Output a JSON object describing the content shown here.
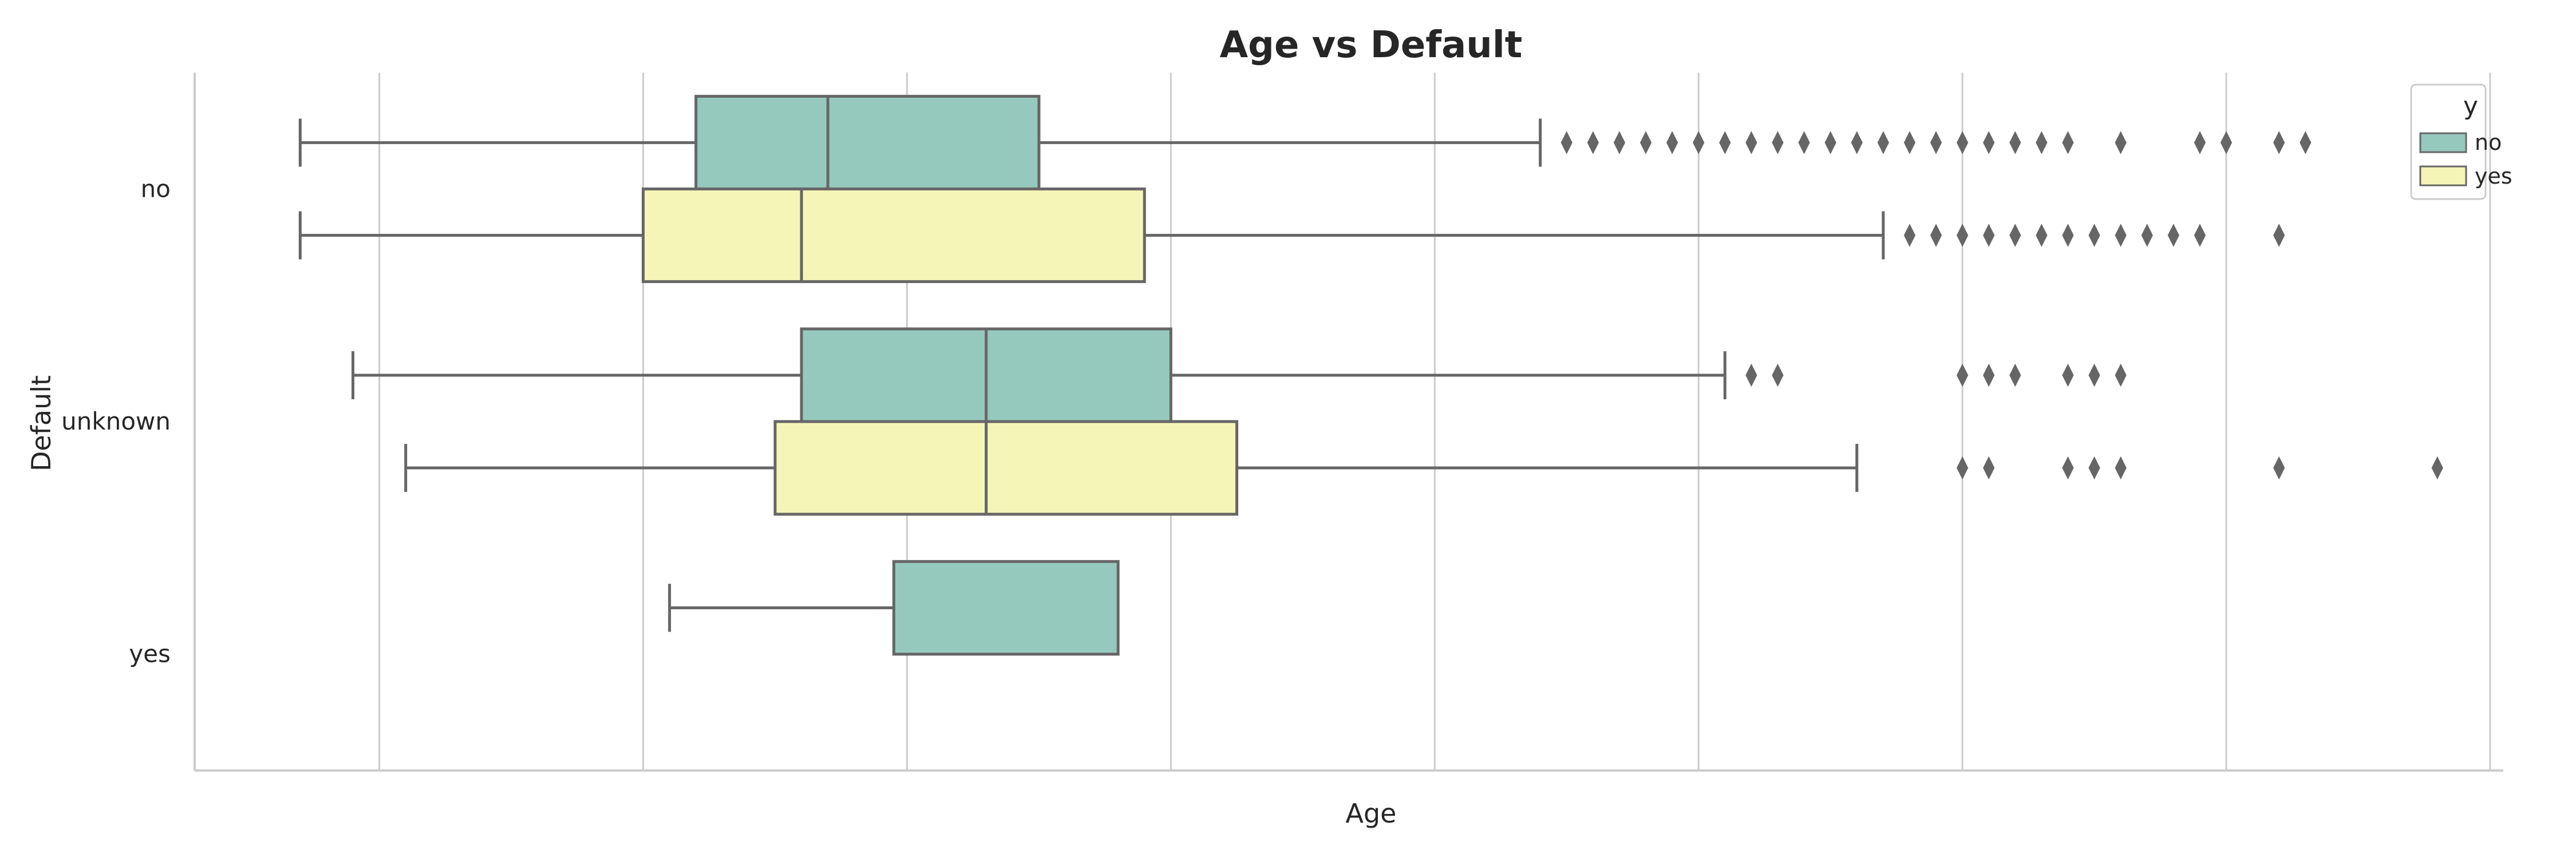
{
  "chart_data": {
    "type": "boxplot",
    "title": "Age vs Default",
    "xlabel": "Age",
    "ylabel": "Default",
    "categories": [
      "no",
      "unknown",
      "yes"
    ],
    "orientation": "horizontal",
    "xlim": [
      13,
      100.5
    ],
    "grid": true,
    "legend": {
      "title": "y",
      "position": "top-right",
      "entries": [
        "no",
        "yes"
      ]
    },
    "colors": {
      "no": "#96c9be",
      "yes": "#f5f5b8",
      "edge": "#666666",
      "grid": "#cccccc"
    },
    "series": [
      {
        "name": "no",
        "boxes": [
          {
            "category": "no",
            "whisker_low": 17,
            "q1": 32,
            "median": 37,
            "q3": 45,
            "whisker_high": 64,
            "outliers": [
              65,
              66,
              67,
              68,
              69,
              70,
              71,
              72,
              73,
              74,
              75,
              76,
              77,
              78,
              79,
              80,
              81,
              82,
              83,
              84,
              86,
              89,
              90,
              92,
              93
            ]
          },
          {
            "category": "unknown",
            "whisker_low": 19,
            "q1": 36,
            "median": 43,
            "q3": 50,
            "whisker_high": 71,
            "outliers": [
              72,
              73,
              80,
              81,
              82,
              84,
              85,
              86
            ]
          },
          {
            "category": "yes",
            "whisker_low": 31,
            "q1": 39.5,
            "median": null,
            "q3": 48,
            "whisker_high": null,
            "outliers": []
          }
        ]
      },
      {
        "name": "yes",
        "boxes": [
          {
            "category": "no",
            "whisker_low": 17,
            "q1": 30,
            "median": 36,
            "q3": 49,
            "whisker_high": 77,
            "outliers": [
              78,
              79,
              80,
              81,
              82,
              83,
              84,
              85,
              86,
              87,
              88,
              89,
              92
            ]
          },
          {
            "category": "unknown",
            "whisker_low": 21,
            "q1": 35,
            "median": 43,
            "q3": 52.5,
            "whisker_high": 76,
            "outliers": [
              80,
              81,
              84,
              85,
              86,
              92,
              98
            ]
          }
        ]
      }
    ]
  }
}
